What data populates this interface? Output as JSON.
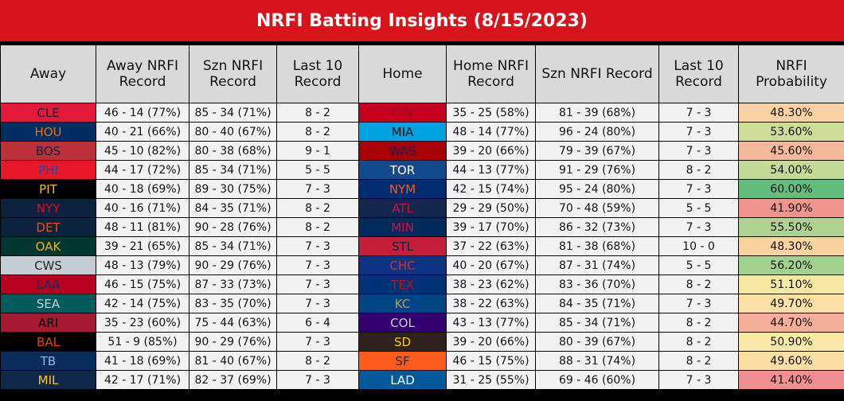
{
  "title": "NRFI Batting Insights (8/15/2023)",
  "headers": [
    "Away",
    "Away NRFI Record",
    "Szn NRFI Record",
    "Last 10 Record",
    "Home",
    "Home NRFI Record",
    "Szn NRFI Record",
    "Last 10 Record",
    "NRFI Probability"
  ],
  "rows": [
    {
      "away": "CLE",
      "away_rec": "46 - 14 (77%)",
      "away_szn": "85 - 34 (71%)",
      "away_l10": "8 - 2",
      "home": "CIN",
      "home_rec": "35 - 25 (58%)",
      "home_szn": "81 - 39 (68%)",
      "home_l10": "7 - 3",
      "prob": "48.30%"
    },
    {
      "away": "HOU",
      "away_rec": "40 - 21 (66%)",
      "away_szn": "80 - 40 (67%)",
      "away_l10": "8 - 2",
      "home": "MIA",
      "home_rec": "48 - 14 (77%)",
      "home_szn": "96 - 24 (80%)",
      "home_l10": "7 - 3",
      "prob": "53.60%"
    },
    {
      "away": "BOS",
      "away_rec": "45 - 10 (82%)",
      "away_szn": "80 - 38 (68%)",
      "away_l10": "9 - 1",
      "home": "WAS",
      "home_rec": "39 - 20 (66%)",
      "home_szn": "79 - 39 (67%)",
      "home_l10": "7 - 3",
      "prob": "45.60%"
    },
    {
      "away": "PHI",
      "away_rec": "44 - 17 (72%)",
      "away_szn": "85 - 34 (71%)",
      "away_l10": "5 - 5",
      "home": "TOR",
      "home_rec": "44 - 13 (77%)",
      "home_szn": "91 - 29 (76%)",
      "home_l10": "8 - 2",
      "prob": "54.00%"
    },
    {
      "away": "PIT",
      "away_rec": "40 - 18 (69%)",
      "away_szn": "89 - 30 (75%)",
      "away_l10": "7 - 3",
      "home": "NYM",
      "home_rec": "42 - 15 (74%)",
      "home_szn": "95 - 24 (80%)",
      "home_l10": "7 - 3",
      "prob": "60.00%"
    },
    {
      "away": "NYY",
      "away_rec": "40 - 16 (71%)",
      "away_szn": "84 - 35 (71%)",
      "away_l10": "8 - 2",
      "home": "ATL",
      "home_rec": "29 - 29 (50%)",
      "home_szn": "70 - 48 (59%)",
      "home_l10": "5 - 5",
      "prob": "41.90%"
    },
    {
      "away": "DET",
      "away_rec": "48 - 11 (81%)",
      "away_szn": "90 - 28 (76%)",
      "away_l10": "8 - 2",
      "home": "MIN",
      "home_rec": "39 - 17 (70%)",
      "home_szn": "86 - 32 (73%)",
      "home_l10": "7 - 3",
      "prob": "55.50%"
    },
    {
      "away": "OAK",
      "away_rec": "39 - 21 (65%)",
      "away_szn": "85 - 34 (71%)",
      "away_l10": "7 - 3",
      "home": "STL",
      "home_rec": "37 - 22 (63%)",
      "home_szn": "81 - 38 (68%)",
      "home_l10": "10 - 0",
      "prob": "48.30%"
    },
    {
      "away": "CWS",
      "away_rec": "48 - 13 (79%)",
      "away_szn": "90 - 29 (76%)",
      "away_l10": "7 - 3",
      "home": "CHC",
      "home_rec": "40 - 20 (67%)",
      "home_szn": "87 - 31 (74%)",
      "home_l10": "5 - 5",
      "prob": "56.20%"
    },
    {
      "away": "LAA",
      "away_rec": "46 - 15 (75%)",
      "away_szn": "87 - 33 (73%)",
      "away_l10": "7 - 3",
      "home": "TEX",
      "home_rec": "38 - 23 (62%)",
      "home_szn": "83 - 36 (70%)",
      "home_l10": "8 - 2",
      "prob": "51.10%"
    },
    {
      "away": "SEA",
      "away_rec": "42 - 14 (75%)",
      "away_szn": "83 - 35 (70%)",
      "away_l10": "7 - 3",
      "home": "KC",
      "home_rec": "38 - 22 (63%)",
      "home_szn": "84 - 35 (71%)",
      "home_l10": "7 - 3",
      "prob": "49.70%"
    },
    {
      "away": "ARI",
      "away_rec": "35 - 23 (60%)",
      "away_szn": "75 - 44 (63%)",
      "away_l10": "6 - 4",
      "home": "COL",
      "home_rec": "43 - 13 (77%)",
      "home_szn": "85 - 34 (71%)",
      "home_l10": "8 - 2",
      "prob": "44.70%"
    },
    {
      "away": "BAL",
      "away_rec": "51 - 9 (85%)",
      "away_szn": "90 - 29 (76%)",
      "away_l10": "7 - 3",
      "home": "SD",
      "home_rec": "39 - 20 (66%)",
      "home_szn": "80 - 39 (67%)",
      "home_l10": "8 - 2",
      "prob": "50.90%"
    },
    {
      "away": "TB",
      "away_rec": "41 - 18 (69%)",
      "away_szn": "81 - 40 (67%)",
      "away_l10": "8 - 2",
      "home": "SF",
      "home_rec": "46 - 15 (75%)",
      "home_szn": "88 - 31 (74%)",
      "home_l10": "8 - 2",
      "prob": "49.60%"
    },
    {
      "away": "MIL",
      "away_rec": "42 - 17 (71%)",
      "away_szn": "82 - 37 (69%)",
      "away_l10": "7 - 3",
      "home": "LAD",
      "home_rec": "31 - 25 (55%)",
      "home_szn": "69 - 46 (60%)",
      "home_l10": "7 - 3",
      "prob": "41.40%"
    }
  ],
  "team_colors": {
    "CLE": {
      "bg": "#e31937",
      "fg": "#0c2340"
    },
    "HOU": {
      "bg": "#002d62",
      "fg": "#eb6e1f"
    },
    "BOS": {
      "bg": "#bd3039",
      "fg": "#0c2340"
    },
    "PHI": {
      "bg": "#e81828",
      "fg": "#284898"
    },
    "PIT": {
      "bg": "#000000",
      "fg": "#fdb827"
    },
    "NYY": {
      "bg": "#0c2340",
      "fg": "#e4002c"
    },
    "DET": {
      "bg": "#0c2340",
      "fg": "#fa4616"
    },
    "OAK": {
      "bg": "#003831",
      "fg": "#efb21e"
    },
    "CWS": {
      "bg": "#c4ced4",
      "fg": "#27251f"
    },
    "LAA": {
      "bg": "#ba0021",
      "fg": "#003263"
    },
    "SEA": {
      "bg": "#005c5c",
      "fg": "#c4ced4"
    },
    "ARI": {
      "bg": "#a71930",
      "fg": "#000000"
    },
    "BAL": {
      "bg": "#000000",
      "fg": "#df4601"
    },
    "TB": {
      "bg": "#092c5c",
      "fg": "#8fbce6"
    },
    "MIL": {
      "bg": "#12284b",
      "fg": "#ffc52f"
    },
    "CIN": {
      "bg": "#c6011f",
      "fg": "#9e0b1c"
    },
    "MIA": {
      "bg": "#00a3e0",
      "fg": "#111111"
    },
    "WAS": {
      "bg": "#ab0003",
      "fg": "#14225a"
    },
    "TOR": {
      "bg": "#134a8e",
      "fg": "#ffffff"
    },
    "NYM": {
      "bg": "#002d72",
      "fg": "#ff5910"
    },
    "ATL": {
      "bg": "#13274f",
      "fg": "#ce1141"
    },
    "MIN": {
      "bg": "#002b5c",
      "fg": "#d31145"
    },
    "STL": {
      "bg": "#c41e3a",
      "fg": "#0c2340"
    },
    "CHC": {
      "bg": "#0e3386",
      "fg": "#cc3433"
    },
    "TEX": {
      "bg": "#003278",
      "fg": "#c0111f"
    },
    "KC": {
      "bg": "#004687",
      "fg": "#bd9b60"
    },
    "COL": {
      "bg": "#33006f",
      "fg": "#c4ced4"
    },
    "SD": {
      "bg": "#2f241d",
      "fg": "#ffc425"
    },
    "SF": {
      "bg": "#fd5a1e",
      "fg": "#27251f"
    },
    "LAD": {
      "bg": "#005a9c",
      "fg": "#ffffff"
    }
  },
  "probability_scale": {
    "low_color": "#ef8f8f",
    "mid_color": "#fde9a7",
    "high_color": "#63be7b",
    "min": 41.4,
    "max": 60.0
  }
}
